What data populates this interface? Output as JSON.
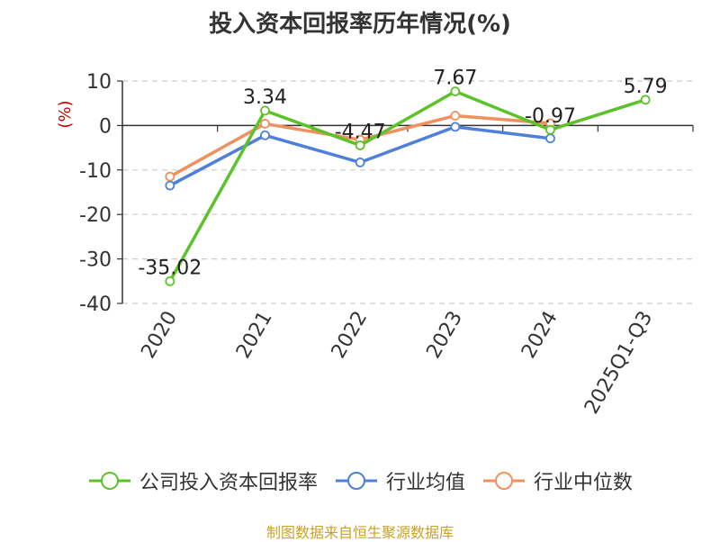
{
  "chart_data": {
    "type": "line",
    "title": "投入资本回报率历年情况(%)",
    "ylabel": "(%)",
    "xlabel": "",
    "categories": [
      "2020",
      "2021",
      "2022",
      "2023",
      "2024",
      "2025Q1-Q3"
    ],
    "ylim": [
      -40,
      10
    ],
    "yticks": [
      10,
      0,
      -10,
      -20,
      -30,
      -40
    ],
    "grid": true,
    "legend_position": "bottom",
    "series": [
      {
        "name": "公司投入资本回报率",
        "color": "#5cc22a",
        "values": [
          -35.02,
          3.34,
          -4.47,
          7.67,
          -0.97,
          5.79
        ],
        "labels": [
          "-35.02",
          "3.34",
          "-4.47",
          "7.67",
          "-0.97",
          "5.79"
        ]
      },
      {
        "name": "行业均值",
        "color": "#4f7fdb",
        "values": [
          -13.5,
          -2.2,
          -8.3,
          -0.3,
          -2.9,
          null
        ]
      },
      {
        "name": "行业中位数",
        "color": "#f0905e",
        "values": [
          -11.5,
          0.4,
          -3.2,
          2.2,
          0.5,
          null
        ]
      }
    ],
    "source": "制图数据来自恒生聚源数据库"
  }
}
